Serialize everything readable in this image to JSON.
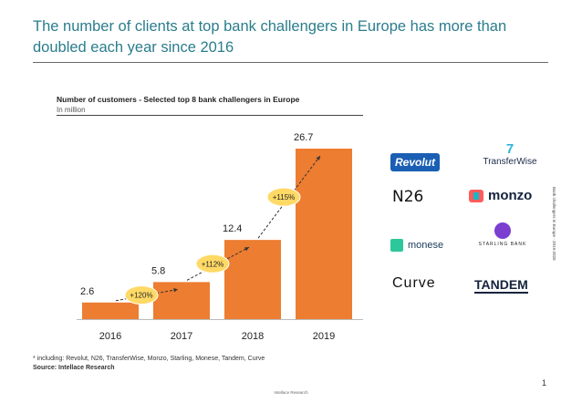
{
  "headline": "The number of clients at top bank challengers in Europe has more than doubled each year since 2016",
  "chart_data": {
    "type": "bar",
    "title": "Number  of customers  - Selected top 8 bank challengers in Europe",
    "subtitle": "In million",
    "categories": [
      "2016",
      "2017",
      "2018",
      "2019"
    ],
    "values": [
      2.6,
      5.8,
      12.4,
      26.7
    ],
    "value_labels": [
      "2.6",
      "5.8",
      "12.4",
      "26.7"
    ],
    "growth_labels": [
      "+120%",
      "+112%",
      "+115%"
    ],
    "ylim": [
      0,
      26.7
    ],
    "bar_color": "#ed7d31",
    "badge_color": "#ffd966",
    "grid": false
  },
  "logos": {
    "revolut": "Revolut",
    "transferwise_mark": "7",
    "transferwise": "TransferWise",
    "n26": "N26",
    "monzo": "monzo",
    "monese": "monese",
    "starling": "STARLING BANK",
    "curve": "Curve",
    "tandem": "TANDEM"
  },
  "footnote": "* including: Revolut, N26, TransferWise, Monzo, Starling, Monese, Tandem, Curve",
  "source_label": "Source:",
  "source_value": "Intellace Research",
  "page_number": "1",
  "footer_brand": "Intellace Research",
  "side_label": "Bank challengers in Europe - 2019-2020"
}
